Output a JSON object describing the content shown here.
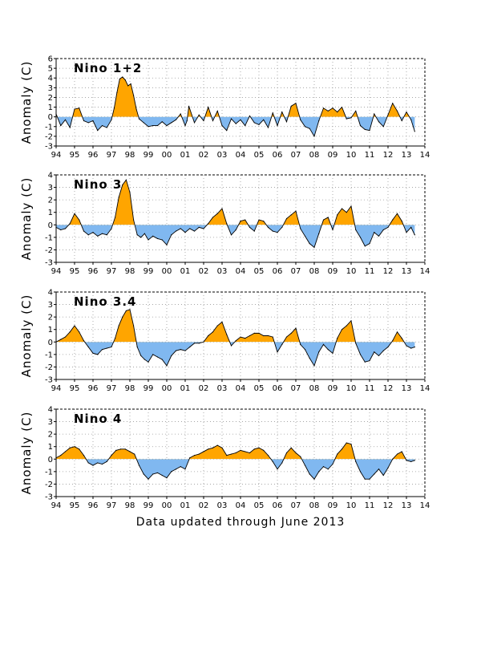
{
  "footer_note": "Data updated through June 2013",
  "chart_data": [
    {
      "type": "area",
      "title": "Nino 1+2",
      "ylabel": "Anomaly (C)",
      "ylim": [
        -3,
        6
      ],
      "y_ticks": [
        "-3",
        "-2",
        "-1",
        "0",
        "1",
        "2",
        "3",
        "4",
        "5",
        "6"
      ],
      "x_ticks": [
        "94",
        "95",
        "96",
        "97",
        "98",
        "99",
        "00",
        "01",
        "02",
        "03",
        "04",
        "05",
        "06",
        "07",
        "08",
        "09",
        "10",
        "11",
        "12",
        "13",
        "14"
      ],
      "grid": true,
      "positive_color": "#ffa500",
      "negative_color": "#80b8f0",
      "x": [
        1994.0,
        1994.25,
        1994.5,
        1994.75,
        1995.0,
        1995.25,
        1995.5,
        1995.75,
        1996.0,
        1996.25,
        1996.5,
        1996.75,
        1997.0,
        1997.15,
        1997.3,
        1997.45,
        1997.6,
        1997.75,
        1997.9,
        1998.05,
        1998.2,
        1998.35,
        1998.5,
        1998.75,
        1999.0,
        1999.25,
        1999.5,
        1999.75,
        2000.0,
        2000.25,
        2000.5,
        2000.75,
        2001.0,
        2001.1,
        2001.2,
        2001.5,
        2001.75,
        2002.0,
        2002.25,
        2002.5,
        2002.75,
        2003.0,
        2003.25,
        2003.5,
        2003.75,
        2004.0,
        2004.25,
        2004.5,
        2004.75,
        2005.0,
        2005.25,
        2005.5,
        2005.75,
        2006.0,
        2006.25,
        2006.5,
        2006.75,
        2007.0,
        2007.25,
        2007.5,
        2007.75,
        2008.0,
        2008.25,
        2008.5,
        2008.75,
        2009.0,
        2009.25,
        2009.5,
        2009.75,
        2010.0,
        2010.25,
        2010.5,
        2010.75,
        2011.0,
        2011.25,
        2011.5,
        2011.75,
        2012.0,
        2012.25,
        2012.5,
        2012.75,
        2013.0,
        2013.25,
        2013.45
      ],
      "values": [
        0.3,
        -0.9,
        -0.3,
        -1.1,
        0.8,
        0.9,
        -0.4,
        -0.6,
        -0.4,
        -1.4,
        -0.9,
        -1.1,
        -0.3,
        0.9,
        2.5,
        3.9,
        4.1,
        3.8,
        3.2,
        3.4,
        2.2,
        0.8,
        -0.2,
        -0.6,
        -1.0,
        -0.9,
        -0.9,
        -0.5,
        -0.9,
        -0.6,
        -0.3,
        0.3,
        -0.9,
        -0.4,
        1.1,
        -0.6,
        0.2,
        -0.4,
        1.0,
        -0.4,
        0.6,
        -0.9,
        -1.4,
        -0.2,
        -0.7,
        -0.3,
        -0.9,
        0.1,
        -0.6,
        -0.8,
        -0.3,
        -1.1,
        0.4,
        -0.9,
        0.5,
        -0.5,
        1.1,
        1.4,
        -0.3,
        -1.0,
        -1.2,
        -2.0,
        -0.4,
        0.9,
        0.6,
        0.9,
        0.5,
        1.0,
        -0.2,
        -0.1,
        0.6,
        -0.9,
        -1.3,
        -1.4,
        0.3,
        -0.5,
        -1.0,
        0.2,
        1.4,
        0.6,
        -0.4,
        0.5,
        -0.3,
        -1.5
      ]
    },
    {
      "type": "area",
      "title": "Nino 3",
      "ylabel": "Anomaly (C)",
      "ylim": [
        -3,
        4
      ],
      "y_ticks": [
        "-3",
        "-2",
        "-1",
        "0",
        "1",
        "2",
        "3",
        "4"
      ],
      "x_ticks": [
        "94",
        "95",
        "96",
        "97",
        "98",
        "99",
        "00",
        "01",
        "02",
        "03",
        "04",
        "05",
        "06",
        "07",
        "08",
        "09",
        "10",
        "11",
        "12",
        "13",
        "14"
      ],
      "grid": true,
      "positive_color": "#ffa500",
      "negative_color": "#80b8f0",
      "x": [
        1994.0,
        1994.25,
        1994.5,
        1994.75,
        1995.0,
        1995.25,
        1995.5,
        1995.75,
        1996.0,
        1996.25,
        1996.5,
        1996.75,
        1997.0,
        1997.2,
        1997.4,
        1997.6,
        1997.8,
        1998.0,
        1998.2,
        1998.4,
        1998.6,
        1998.8,
        1999.0,
        1999.25,
        1999.5,
        1999.75,
        2000.0,
        2000.25,
        2000.5,
        2000.75,
        2001.0,
        2001.25,
        2001.5,
        2001.75,
        2002.0,
        2002.25,
        2002.5,
        2002.75,
        2003.0,
        2003.25,
        2003.5,
        2003.75,
        2004.0,
        2004.25,
        2004.5,
        2004.75,
        2005.0,
        2005.25,
        2005.5,
        2005.75,
        2006.0,
        2006.25,
        2006.5,
        2006.75,
        2007.0,
        2007.25,
        2007.5,
        2007.75,
        2008.0,
        2008.25,
        2008.5,
        2008.75,
        2009.0,
        2009.25,
        2009.5,
        2009.75,
        2010.0,
        2010.25,
        2010.5,
        2010.75,
        2011.0,
        2011.25,
        2011.5,
        2011.75,
        2012.0,
        2012.25,
        2012.5,
        2012.75,
        2013.0,
        2013.25,
        2013.45
      ],
      "values": [
        -0.2,
        -0.4,
        -0.3,
        0.1,
        0.9,
        0.4,
        -0.5,
        -0.8,
        -0.6,
        -0.9,
        -0.7,
        -0.8,
        -0.3,
        0.6,
        2.2,
        3.2,
        3.6,
        2.6,
        0.4,
        -0.8,
        -1.0,
        -0.7,
        -1.2,
        -0.9,
        -1.1,
        -1.2,
        -1.6,
        -0.8,
        -0.5,
        -0.3,
        -0.6,
        -0.3,
        -0.5,
        -0.2,
        -0.3,
        0.1,
        0.6,
        0.9,
        1.3,
        0.1,
        -0.8,
        -0.4,
        0.3,
        0.4,
        -0.2,
        -0.5,
        0.4,
        0.3,
        -0.2,
        -0.5,
        -0.6,
        -0.2,
        0.5,
        0.8,
        1.1,
        -0.3,
        -0.9,
        -1.5,
        -1.8,
        -0.7,
        0.4,
        0.6,
        -0.4,
        0.8,
        1.3,
        1.0,
        1.5,
        -0.4,
        -1.0,
        -1.7,
        -1.5,
        -0.6,
        -0.9,
        -0.4,
        -0.2,
        0.4,
        0.9,
        0.3,
        -0.6,
        -0.2,
        -0.8
      ]
    },
    {
      "type": "area",
      "title": "Nino 3.4",
      "ylabel": "Anomaly (C)",
      "ylim": [
        -3,
        4
      ],
      "y_ticks": [
        "-3",
        "-2",
        "-1",
        "0",
        "1",
        "2",
        "3",
        "4"
      ],
      "x_ticks": [
        "94",
        "95",
        "96",
        "97",
        "98",
        "99",
        "00",
        "01",
        "02",
        "03",
        "04",
        "05",
        "06",
        "07",
        "08",
        "09",
        "10",
        "11",
        "12",
        "13",
        "14"
      ],
      "grid": true,
      "positive_color": "#ffa500",
      "negative_color": "#80b8f0",
      "x": [
        1994.0,
        1994.25,
        1994.5,
        1994.75,
        1995.0,
        1995.25,
        1995.5,
        1995.75,
        1996.0,
        1996.25,
        1996.5,
        1996.75,
        1997.0,
        1997.2,
        1997.4,
        1997.6,
        1997.8,
        1998.0,
        1998.2,
        1998.4,
        1998.6,
        1998.8,
        1999.0,
        1999.25,
        1999.5,
        1999.75,
        2000.0,
        2000.25,
        2000.5,
        2000.75,
        2001.0,
        2001.25,
        2001.5,
        2001.75,
        2002.0,
        2002.25,
        2002.5,
        2002.75,
        2003.0,
        2003.25,
        2003.5,
        2003.75,
        2004.0,
        2004.25,
        2004.5,
        2004.75,
        2005.0,
        2005.25,
        2005.5,
        2005.75,
        2006.0,
        2006.25,
        2006.5,
        2006.75,
        2007.0,
        2007.25,
        2007.5,
        2007.75,
        2008.0,
        2008.25,
        2008.5,
        2008.75,
        2009.0,
        2009.25,
        2009.5,
        2009.75,
        2010.0,
        2010.25,
        2010.5,
        2010.75,
        2011.0,
        2011.25,
        2011.5,
        2011.75,
        2012.0,
        2012.25,
        2012.5,
        2012.75,
        2013.0,
        2013.25,
        2013.45
      ],
      "values": [
        0.0,
        0.2,
        0.4,
        0.8,
        1.3,
        0.8,
        0.1,
        -0.4,
        -0.9,
        -1.0,
        -0.6,
        -0.5,
        -0.4,
        0.3,
        1.3,
        2.0,
        2.5,
        2.6,
        1.3,
        -0.4,
        -1.1,
        -1.4,
        -1.6,
        -1.0,
        -1.2,
        -1.4,
        -1.9,
        -1.1,
        -0.7,
        -0.6,
        -0.7,
        -0.4,
        -0.1,
        -0.1,
        0.0,
        0.5,
        0.8,
        1.3,
        1.6,
        0.6,
        -0.3,
        0.1,
        0.4,
        0.3,
        0.5,
        0.7,
        0.7,
        0.5,
        0.5,
        0.4,
        -0.8,
        -0.2,
        0.4,
        0.7,
        1.1,
        -0.2,
        -0.6,
        -1.3,
        -1.9,
        -0.8,
        -0.2,
        -0.6,
        -0.9,
        0.3,
        1.0,
        1.3,
        1.7,
        -0.1,
        -1.0,
        -1.6,
        -1.5,
        -0.8,
        -1.1,
        -0.7,
        -0.4,
        0.1,
        0.8,
        0.3,
        -0.3,
        -0.5,
        -0.4
      ]
    },
    {
      "type": "area",
      "title": "Nino 4",
      "ylabel": "Anomaly (C)",
      "ylim": [
        -3,
        4
      ],
      "y_ticks": [
        "-3",
        "-2",
        "-1",
        "0",
        "1",
        "2",
        "3",
        "4"
      ],
      "x_ticks": [
        "94",
        "95",
        "96",
        "97",
        "98",
        "99",
        "00",
        "01",
        "02",
        "03",
        "04",
        "05",
        "06",
        "07",
        "08",
        "09",
        "10",
        "11",
        "12",
        "13",
        "14"
      ],
      "grid": true,
      "positive_color": "#ffa500",
      "negative_color": "#80b8f0",
      "x": [
        1994.0,
        1994.25,
        1994.5,
        1994.75,
        1995.0,
        1995.25,
        1995.5,
        1995.75,
        1996.0,
        1996.25,
        1996.5,
        1996.75,
        1997.0,
        1997.25,
        1997.5,
        1997.75,
        1998.0,
        1998.25,
        1998.5,
        1998.75,
        1999.0,
        1999.25,
        1999.5,
        1999.75,
        2000.0,
        2000.25,
        2000.5,
        2000.75,
        2001.0,
        2001.25,
        2001.5,
        2001.75,
        2002.0,
        2002.25,
        2002.5,
        2002.75,
        2003.0,
        2003.25,
        2003.5,
        2003.75,
        2004.0,
        2004.25,
        2004.5,
        2004.75,
        2005.0,
        2005.25,
        2005.5,
        2005.75,
        2006.0,
        2006.25,
        2006.5,
        2006.75,
        2007.0,
        2007.25,
        2007.5,
        2007.75,
        2008.0,
        2008.25,
        2008.5,
        2008.75,
        2009.0,
        2009.25,
        2009.5,
        2009.75,
        2010.0,
        2010.25,
        2010.5,
        2010.75,
        2011.0,
        2011.25,
        2011.5,
        2011.75,
        2012.0,
        2012.25,
        2012.5,
        2012.75,
        2013.0,
        2013.25,
        2013.45
      ],
      "values": [
        0.1,
        0.3,
        0.6,
        0.9,
        1.0,
        0.8,
        0.3,
        -0.3,
        -0.5,
        -0.3,
        -0.4,
        -0.2,
        0.3,
        0.7,
        0.8,
        0.8,
        0.6,
        0.4,
        -0.5,
        -1.2,
        -1.6,
        -1.2,
        -1.1,
        -1.3,
        -1.5,
        -1.0,
        -0.8,
        -0.6,
        -0.8,
        0.1,
        0.3,
        0.4,
        0.6,
        0.8,
        0.9,
        1.1,
        0.9,
        0.3,
        0.4,
        0.5,
        0.7,
        0.6,
        0.5,
        0.8,
        0.9,
        0.7,
        0.3,
        -0.2,
        -0.8,
        -0.3,
        0.5,
        0.9,
        0.5,
        0.2,
        -0.5,
        -1.2,
        -1.6,
        -1.0,
        -0.6,
        -0.8,
        -0.4,
        0.4,
        0.8,
        1.3,
        1.2,
        -0.2,
        -1.0,
        -1.6,
        -1.6,
        -1.2,
        -0.8,
        -1.3,
        -0.7,
        0.0,
        0.4,
        0.6,
        -0.1,
        -0.2,
        -0.1
      ]
    }
  ]
}
